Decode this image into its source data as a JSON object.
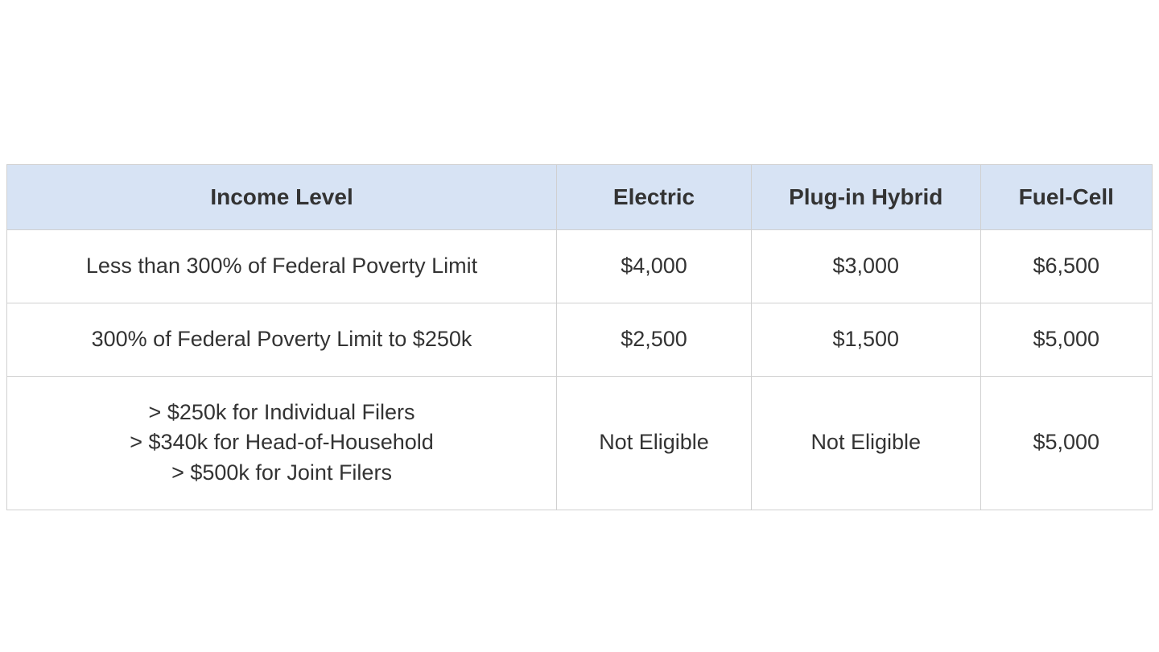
{
  "table": {
    "header_bg_color": "#d7e3f4",
    "border_color": "#d0d0d0",
    "cell_bg_color": "#ffffff",
    "text_color": "#333333",
    "header_fontsize": 28,
    "cell_fontsize": 27,
    "columns": [
      {
        "label": "Income Level",
        "width_pct": 48
      },
      {
        "label": "Electric",
        "width_pct": 17
      },
      {
        "label": "Plug-in Hybrid",
        "width_pct": 20
      },
      {
        "label": "Fuel-Cell",
        "width_pct": 15
      }
    ],
    "rows": [
      {
        "income": "Less than 300% of Federal Poverty Limit",
        "electric": "$4,000",
        "plugin": "$3,000",
        "fuelcell": "$6,500"
      },
      {
        "income": "300% of Federal Poverty Limit to $250k",
        "electric": "$2,500",
        "plugin": "$1,500",
        "fuelcell": "$5,000"
      },
      {
        "income": "> $250k for Individual Filers\n> $340k for Head-of-Household\n> $500k for Joint Filers",
        "electric": "Not Eligible",
        "plugin": "Not Eligible",
        "fuelcell": "$5,000"
      }
    ]
  }
}
